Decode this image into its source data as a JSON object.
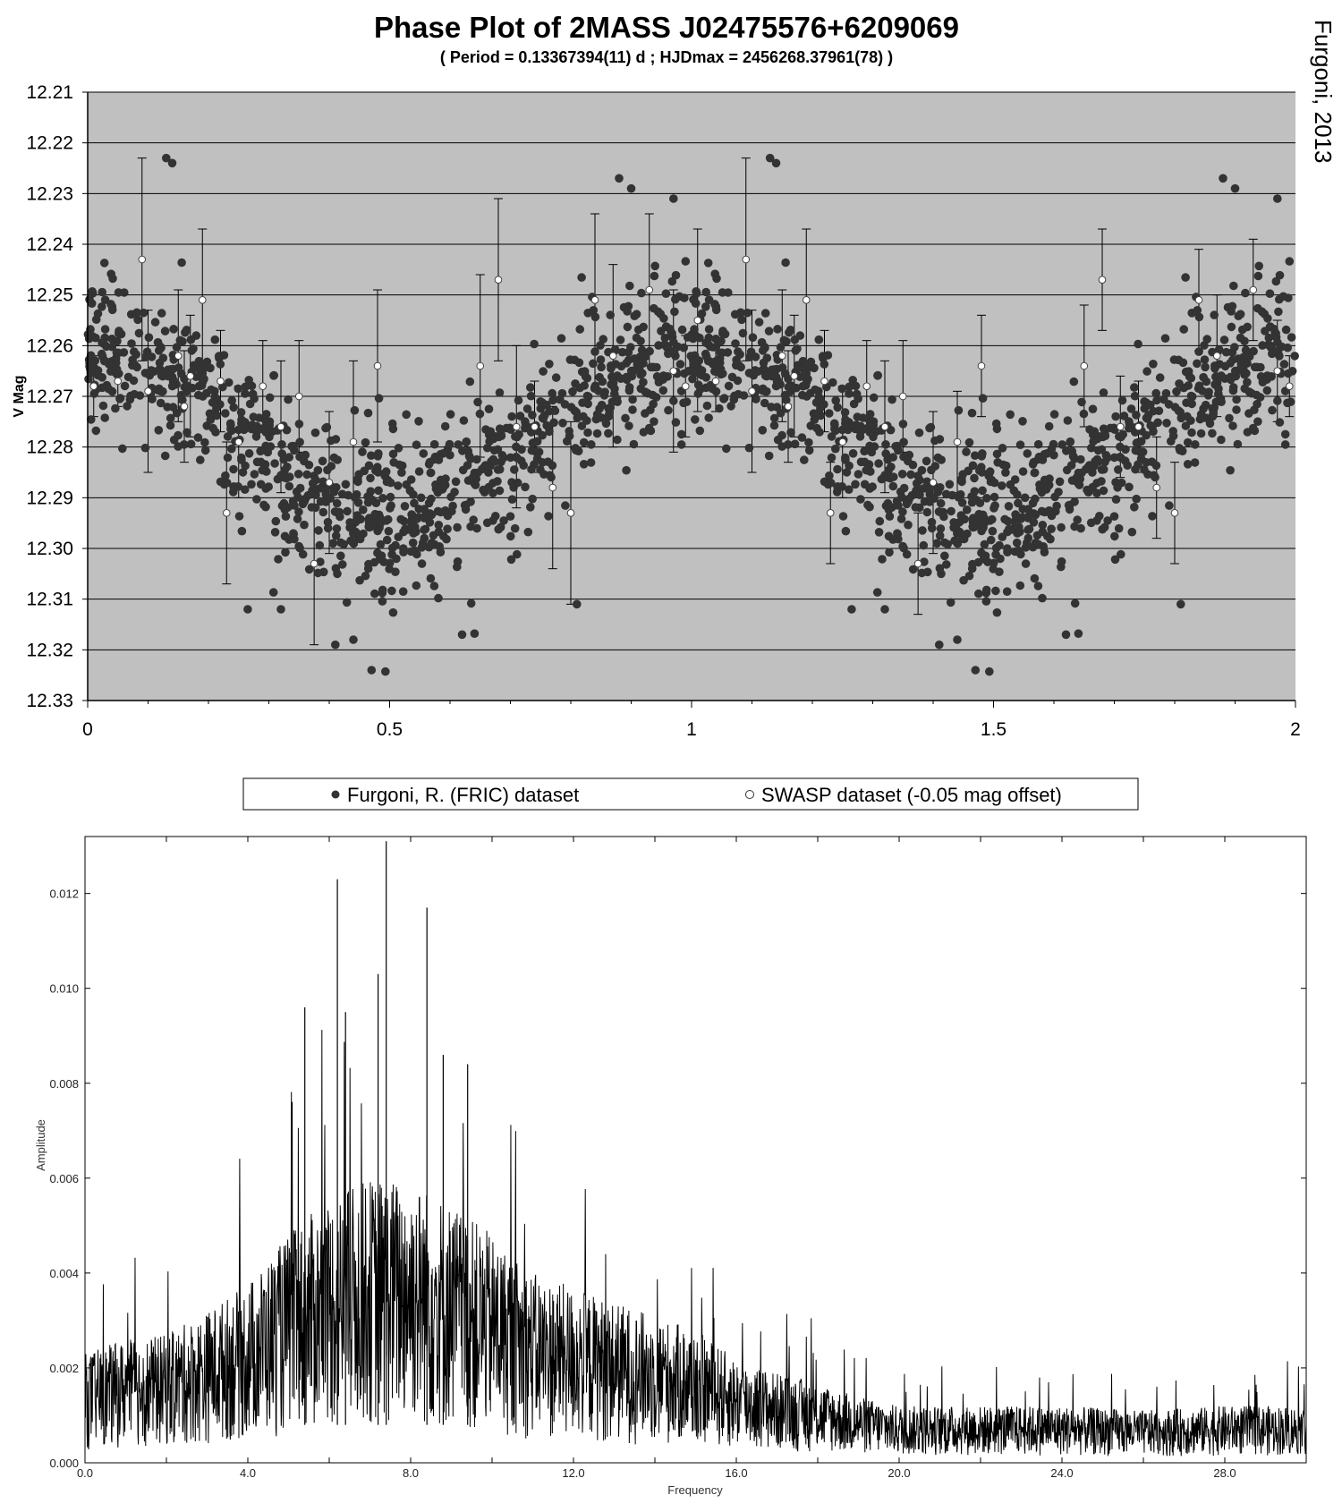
{
  "credit": "Furgoni, 2013",
  "chart_data": [
    {
      "type": "scatter",
      "title": "Phase Plot of 2MASS J02475576+6209069",
      "subtitle": "( Period = 0.13367394(11) d ; HJDmax = 2456268.37961(78) )",
      "xlabel": "",
      "ylabel": "V Mag",
      "xlim": [
        0,
        2
      ],
      "ylim": [
        12.33,
        12.21
      ],
      "y_inverted": true,
      "grid": "horizontal",
      "background": "#c0c0c0",
      "x_ticks": [
        "0",
        "0.5",
        "1",
        "1.5",
        "2"
      ],
      "x_tick_values": [
        0,
        0.5,
        1,
        1.5,
        2
      ],
      "y_ticks": [
        "12.21",
        "12.22",
        "12.23",
        "12.24",
        "12.25",
        "12.26",
        "12.27",
        "12.28",
        "12.29",
        "12.30",
        "12.31",
        "12.32",
        "12.33"
      ],
      "y_tick_values": [
        12.21,
        12.22,
        12.23,
        12.24,
        12.25,
        12.26,
        12.27,
        12.28,
        12.29,
        12.3,
        12.31,
        12.32,
        12.33
      ],
      "legend": {
        "placement": "below",
        "entries": [
          {
            "label": "Furgoni, R. (FRIC) dataset",
            "marker": "filled"
          },
          {
            "label": "SWASP dataset (-0.05 mag offset)",
            "marker": "open"
          }
        ]
      },
      "series": [
        {
          "name": "Furgoni, R. (FRIC) dataset",
          "color": "#333333",
          "marker": "filled-circle",
          "note": "approx. 1000 points per cycle, phase folded and repeated from 0 to 2",
          "model": {
            "mean": 12.277,
            "amplitude": 0.0155,
            "phase_of_max": 0.0,
            "scatter": 0.011
          },
          "outliers": [
            [
              0.13,
              12.223
            ],
            [
              0.14,
              12.224
            ],
            [
              0.265,
              12.312
            ],
            [
              0.32,
              12.312
            ],
            [
              0.41,
              12.319
            ],
            [
              0.44,
              12.318
            ],
            [
              0.47,
              12.324
            ],
            [
              0.62,
              12.317
            ],
            [
              0.81,
              12.311
            ],
            [
              0.88,
              12.227
            ],
            [
              0.9,
              12.229
            ],
            [
              0.97,
              12.231
            ]
          ]
        },
        {
          "name": "SWASP dataset (-0.05 mag offset)",
          "color": "#ffffff",
          "marker": "open-circle",
          "points": [
            [
              0.01,
              12.268,
              0.006
            ],
            [
              0.05,
              12.267,
              0.005
            ],
            [
              0.09,
              12.243,
              0.02
            ],
            [
              0.1,
              12.269,
              0.016
            ],
            [
              0.15,
              12.262,
              0.013
            ],
            [
              0.16,
              12.272,
              0.011
            ],
            [
              0.17,
              12.266,
              0.012
            ],
            [
              0.19,
              12.251,
              0.014
            ],
            [
              0.22,
              12.267,
              0.01
            ],
            [
              0.23,
              12.293,
              0.014
            ],
            [
              0.25,
              12.279,
              0.011
            ],
            [
              0.29,
              12.268,
              0.009
            ],
            [
              0.32,
              12.276,
              0.013
            ],
            [
              0.35,
              12.27,
              0.011
            ],
            [
              0.375,
              12.303,
              0.016
            ],
            [
              0.4,
              12.287,
              0.014
            ],
            [
              0.44,
              12.279,
              0.016
            ],
            [
              0.48,
              12.264,
              0.015
            ],
            [
              0.65,
              12.264,
              0.018
            ],
            [
              0.68,
              12.247,
              0.016
            ],
            [
              0.71,
              12.276,
              0.016
            ],
            [
              0.74,
              12.276,
              0.009
            ],
            [
              0.77,
              12.288,
              0.016
            ],
            [
              0.8,
              12.293,
              0.018
            ],
            [
              0.84,
              12.251,
              0.017
            ],
            [
              0.87,
              12.262,
              0.018
            ],
            [
              0.93,
              12.249,
              0.015
            ],
            [
              0.97,
              12.265,
              0.016
            ],
            [
              0.99,
              12.268,
              0.01
            ],
            [
              1.01,
              12.255,
              0.018
            ],
            [
              1.04,
              12.267,
              0.006
            ],
            [
              1.09,
              12.243,
              0.02
            ],
            [
              1.1,
              12.269,
              0.016
            ],
            [
              1.15,
              12.262,
              0.013
            ],
            [
              1.16,
              12.272,
              0.011
            ],
            [
              1.17,
              12.266,
              0.012
            ],
            [
              1.19,
              12.251,
              0.014
            ],
            [
              1.22,
              12.267,
              0.01
            ],
            [
              1.23,
              12.293,
              0.01
            ],
            [
              1.25,
              12.279,
              0.011
            ],
            [
              1.29,
              12.268,
              0.009
            ],
            [
              1.32,
              12.276,
              0.013
            ],
            [
              1.35,
              12.27,
              0.011
            ],
            [
              1.375,
              12.303,
              0.01
            ],
            [
              1.4,
              12.287,
              0.014
            ],
            [
              1.44,
              12.279,
              0.01
            ],
            [
              1.48,
              12.264,
              0.01
            ],
            [
              1.65,
              12.264,
              0.012
            ],
            [
              1.68,
              12.247,
              0.01
            ],
            [
              1.71,
              12.276,
              0.01
            ],
            [
              1.74,
              12.276,
              0.009
            ],
            [
              1.77,
              12.288,
              0.01
            ],
            [
              1.8,
              12.293,
              0.01
            ],
            [
              1.84,
              12.251,
              0.01
            ],
            [
              1.87,
              12.262,
              0.012
            ],
            [
              1.93,
              12.249,
              0.01
            ],
            [
              1.97,
              12.265,
              0.01
            ],
            [
              1.99,
              12.268,
              0.006
            ]
          ]
        }
      ]
    },
    {
      "type": "line",
      "title": "",
      "xlabel": "Frequency",
      "ylabel": "Amplitude",
      "xlim": [
        0,
        30
      ],
      "ylim": [
        0,
        0.0132
      ],
      "grid": "off",
      "x_ticks": [
        "0.0",
        "4.0",
        "8.0",
        "12.0",
        "16.0",
        "20.0",
        "24.0",
        "28.0"
      ],
      "x_tick_values": [
        0,
        4,
        8,
        12,
        16,
        20,
        24,
        28
      ],
      "y_ticks": [
        "0.000",
        "0.002",
        "0.004",
        "0.006",
        "0.008",
        "0.010",
        "0.012"
      ],
      "y_tick_values": [
        0,
        0.002,
        0.004,
        0.006,
        0.008,
        0.01,
        0.012
      ],
      "series": [
        {
          "name": "",
          "color": "#000000",
          "note": "dense amplitude spectrum, approx. 3000 samples",
          "envelope": [
            [
              0,
              0.0023
            ],
            [
              1,
              0.0026
            ],
            [
              2,
              0.0027
            ],
            [
              3,
              0.0032
            ],
            [
              4,
              0.0038
            ],
            [
              5,
              0.0048
            ],
            [
              6,
              0.0056
            ],
            [
              7,
              0.006
            ],
            [
              8,
              0.006
            ],
            [
              9,
              0.0055
            ],
            [
              10,
              0.0048
            ],
            [
              11,
              0.004
            ],
            [
              12,
              0.0037
            ],
            [
              13,
              0.0034
            ],
            [
              14,
              0.0031
            ],
            [
              15,
              0.0028
            ],
            [
              16,
              0.0022
            ],
            [
              17,
              0.0019
            ],
            [
              18,
              0.0017
            ],
            [
              19,
              0.0014
            ],
            [
              20,
              0.0012
            ],
            [
              22,
              0.0012
            ],
            [
              24,
              0.0012
            ],
            [
              26,
              0.0011
            ],
            [
              28,
              0.0012
            ],
            [
              30,
              0.0012
            ]
          ],
          "peaks": [
            [
              5.4,
              0.0096
            ],
            [
              6.2,
              0.0123
            ],
            [
              6.4,
              0.0095
            ],
            [
              7.2,
              0.0103
            ],
            [
              7.4,
              0.0131
            ],
            [
              8.4,
              0.0117
            ],
            [
              9.4,
              0.0084
            ],
            [
              8.8,
              0.0086
            ]
          ]
        }
      ]
    }
  ]
}
